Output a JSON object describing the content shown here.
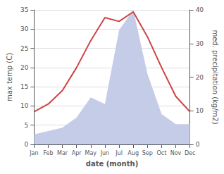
{
  "chart_data": {
    "type": "line",
    "categories": [
      "Jan",
      "Feb",
      "Mar",
      "Apr",
      "May",
      "Jun",
      "Jul",
      "Aug",
      "Sep",
      "Oct",
      "Nov",
      "Dec"
    ],
    "series": [
      {
        "type": "area",
        "axis": "y2",
        "color": "#c5cce8",
        "values": [
          3,
          4,
          5,
          8,
          14,
          12,
          34,
          40,
          21,
          9,
          6,
          6
        ]
      },
      {
        "type": "line",
        "axis": "y",
        "color": "#cc4444",
        "values": [
          8.5,
          10.5,
          14,
          20,
          27,
          33,
          32,
          34.5,
          28,
          20,
          12.5,
          8.5
        ]
      }
    ],
    "xlabel": "date (month)",
    "ylabel": "max temp (C)",
    "y2label": "med. precipitation (kg/m2)",
    "ylim": [
      0,
      35
    ],
    "yticks": [
      0,
      5,
      10,
      15,
      20,
      25,
      30,
      35
    ],
    "y2lim": [
      0,
      40
    ],
    "y2ticks": [
      0,
      10,
      20,
      30,
      40
    ],
    "grid": true
  }
}
